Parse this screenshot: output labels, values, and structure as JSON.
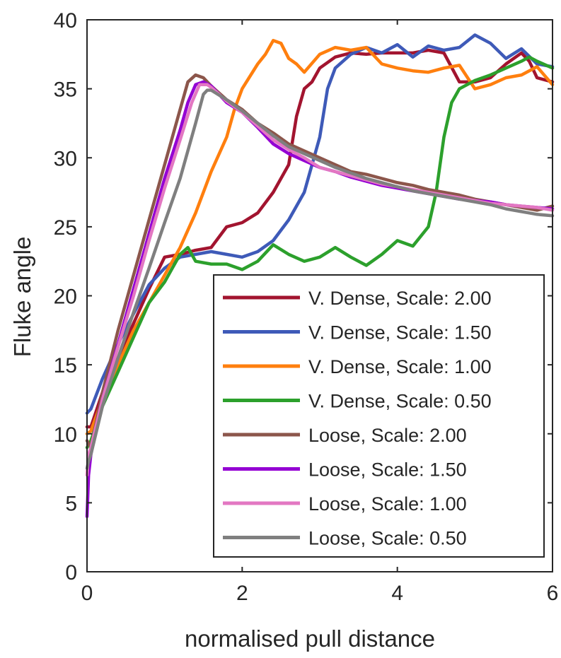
{
  "chart_data": {
    "type": "line",
    "title": "",
    "xlabel": "normalised pull distance",
    "ylabel": "Fluke angle",
    "xlim": [
      0,
      6
    ],
    "ylim": [
      0,
      40
    ],
    "xticks": [
      0,
      2,
      4,
      6
    ],
    "yticks": [
      0,
      5,
      10,
      15,
      20,
      25,
      30,
      35,
      40
    ],
    "grid": false,
    "legend_position": "bottom-right",
    "series": [
      {
        "name": "V. Dense, Scale: 2.00",
        "color": "#A2142F",
        "x": [
          0,
          0.05,
          0.2,
          0.4,
          0.6,
          0.8,
          1.0,
          1.2,
          1.4,
          1.6,
          1.8,
          2.0,
          2.2,
          2.4,
          2.6,
          2.7,
          2.8,
          2.9,
          3.0,
          3.2,
          3.4,
          3.6,
          3.8,
          4.0,
          4.2,
          4.4,
          4.6,
          4.8,
          5.0,
          5.2,
          5.4,
          5.6,
          5.7,
          5.8,
          6.0
        ],
        "y": [
          10.5,
          10.5,
          13.0,
          15.5,
          18.0,
          20.5,
          22.8,
          23.0,
          23.3,
          23.5,
          25.0,
          25.3,
          26.0,
          27.5,
          29.5,
          33.0,
          35.0,
          35.5,
          36.5,
          37.3,
          37.6,
          37.5,
          37.6,
          37.6,
          37.6,
          37.8,
          37.6,
          35.5,
          35.5,
          35.8,
          36.8,
          37.6,
          37.0,
          35.8,
          35.5
        ]
      },
      {
        "name": "V. Dense, Scale: 1.50",
        "color": "#3E5AB8",
        "x": [
          0,
          0.05,
          0.2,
          0.4,
          0.6,
          0.8,
          1.0,
          1.2,
          1.4,
          1.6,
          1.8,
          2.0,
          2.2,
          2.4,
          2.6,
          2.8,
          3.0,
          3.1,
          3.2,
          3.4,
          3.6,
          3.8,
          4.0,
          4.2,
          4.4,
          4.6,
          4.8,
          5.0,
          5.2,
          5.4,
          5.6,
          5.8,
          6.0
        ],
        "y": [
          11.5,
          11.8,
          14.0,
          16.5,
          18.7,
          20.8,
          22.0,
          22.8,
          23.0,
          23.2,
          23.0,
          22.8,
          23.2,
          24.0,
          25.5,
          27.5,
          31.5,
          35.0,
          36.5,
          37.5,
          38.0,
          37.6,
          38.2,
          37.3,
          38.1,
          37.8,
          38.0,
          38.9,
          38.3,
          37.2,
          37.9,
          36.8,
          36.6
        ]
      },
      {
        "name": "V. Dense, Scale: 1.00",
        "color": "#FF7F0E",
        "x": [
          0,
          0.05,
          0.2,
          0.4,
          0.6,
          0.8,
          1.0,
          1.2,
          1.4,
          1.6,
          1.8,
          1.9,
          2.0,
          2.2,
          2.3,
          2.4,
          2.5,
          2.6,
          2.7,
          2.8,
          3.0,
          3.2,
          3.4,
          3.6,
          3.8,
          4.0,
          4.2,
          4.4,
          4.6,
          4.8,
          5.0,
          5.2,
          5.4,
          5.6,
          5.8,
          6.0
        ],
        "y": [
          10.0,
          10.2,
          12.5,
          15.0,
          17.5,
          19.5,
          21.5,
          23.5,
          26.0,
          29.0,
          31.5,
          33.5,
          35.0,
          36.8,
          37.5,
          38.5,
          38.3,
          37.2,
          36.8,
          36.2,
          37.5,
          38.0,
          37.8,
          38.0,
          36.8,
          36.5,
          36.3,
          36.2,
          36.5,
          36.7,
          35.0,
          35.3,
          35.8,
          36.0,
          36.6,
          35.3
        ]
      },
      {
        "name": "V. Dense, Scale: 0.50",
        "color": "#2CA02C",
        "x": [
          0,
          0.05,
          0.2,
          0.4,
          0.6,
          0.8,
          1.0,
          1.1,
          1.2,
          1.3,
          1.4,
          1.6,
          1.8,
          2.0,
          2.2,
          2.4,
          2.6,
          2.8,
          3.0,
          3.2,
          3.4,
          3.6,
          3.8,
          4.0,
          4.2,
          4.4,
          4.5,
          4.6,
          4.7,
          4.8,
          5.0,
          5.2,
          5.4,
          5.6,
          5.7,
          5.8,
          6.0
        ],
        "y": [
          9.0,
          9.5,
          12.0,
          14.5,
          17.0,
          19.5,
          21.0,
          22.0,
          23.0,
          23.5,
          22.5,
          22.3,
          22.3,
          21.9,
          22.5,
          23.7,
          23.0,
          22.5,
          22.8,
          23.5,
          22.8,
          22.2,
          23.0,
          24.0,
          23.6,
          25.0,
          27.5,
          31.5,
          34.0,
          35.0,
          35.6,
          36.0,
          36.5,
          37.0,
          37.3,
          37.0,
          36.5
        ]
      },
      {
        "name": "Loose, Scale: 2.00",
        "color": "#8C564B",
        "x": [
          0,
          0.05,
          0.2,
          0.4,
          0.6,
          0.8,
          1.0,
          1.2,
          1.3,
          1.4,
          1.5,
          1.6,
          1.8,
          2.0,
          2.2,
          2.4,
          2.6,
          2.8,
          3.0,
          3.2,
          3.4,
          3.6,
          3.8,
          4.0,
          4.2,
          4.4,
          4.6,
          4.8,
          5.0,
          5.2,
          5.4,
          5.6,
          5.8,
          6.0
        ],
        "y": [
          9.5,
          9.0,
          13.0,
          17.5,
          21.5,
          25.5,
          29.5,
          33.5,
          35.5,
          36.0,
          35.8,
          35.2,
          34.2,
          33.5,
          32.5,
          31.8,
          31.0,
          30.5,
          30.0,
          29.5,
          29.0,
          28.8,
          28.5,
          28.2,
          28.0,
          27.7,
          27.5,
          27.3,
          27.0,
          26.8,
          26.6,
          26.4,
          26.2,
          26.5
        ]
      },
      {
        "name": "Loose, Scale: 1.50",
        "color": "#9400D3",
        "x": [
          0,
          0.02,
          0.05,
          0.2,
          0.4,
          0.6,
          0.8,
          1.0,
          1.2,
          1.3,
          1.4,
          1.5,
          1.6,
          1.8,
          2.0,
          2.2,
          2.4,
          2.6,
          2.8,
          3.0,
          3.2,
          3.4,
          3.6,
          3.8,
          4.0,
          4.2,
          4.4,
          4.6,
          4.8,
          5.0,
          5.2,
          5.4,
          5.6,
          5.8,
          6.0
        ],
        "y": [
          4.0,
          7.0,
          8.5,
          12.5,
          16.5,
          20.5,
          24.5,
          28.5,
          32.0,
          34.0,
          35.3,
          35.5,
          35.2,
          34.0,
          33.3,
          32.2,
          31.0,
          30.3,
          29.8,
          29.3,
          29.0,
          28.6,
          28.3,
          28.0,
          27.8,
          27.6,
          27.4,
          27.2,
          27.0,
          26.9,
          26.8,
          26.6,
          26.5,
          26.4,
          26.3
        ]
      },
      {
        "name": "Loose, Scale: 1.00",
        "color": "#E377C2",
        "x": [
          0,
          0.02,
          0.05,
          0.2,
          0.4,
          0.6,
          0.8,
          1.0,
          1.2,
          1.35,
          1.45,
          1.55,
          1.6,
          1.8,
          2.0,
          2.2,
          2.4,
          2.6,
          2.8,
          3.0,
          3.2,
          3.4,
          3.6,
          3.8,
          4.0,
          4.2,
          4.4,
          4.6,
          4.8,
          5.0,
          5.2,
          5.4,
          5.6,
          5.8,
          6.0
        ],
        "y": [
          7.0,
          8.5,
          9.0,
          12.5,
          16.3,
          20.0,
          24.0,
          27.8,
          31.3,
          34.0,
          35.3,
          35.3,
          35.1,
          34.1,
          33.3,
          32.3,
          31.3,
          30.6,
          30.0,
          29.3,
          29.0,
          28.7,
          28.4,
          28.1,
          27.9,
          27.7,
          27.5,
          27.3,
          27.1,
          26.9,
          26.7,
          26.6,
          26.5,
          26.4,
          26.2
        ]
      },
      {
        "name": "Loose, Scale: 0.50",
        "color": "#7F7F7F",
        "x": [
          0,
          0.02,
          0.05,
          0.2,
          0.4,
          0.6,
          0.8,
          1.0,
          1.2,
          1.4,
          1.5,
          1.55,
          1.6,
          1.8,
          2.0,
          2.2,
          2.4,
          2.6,
          2.8,
          3.0,
          3.2,
          3.4,
          3.6,
          3.8,
          4.0,
          4.2,
          4.4,
          4.6,
          4.8,
          5.0,
          5.2,
          5.4,
          5.6,
          5.7,
          5.8,
          6.0
        ],
        "y": [
          7.5,
          8.0,
          8.5,
          12.0,
          15.5,
          18.8,
          22.0,
          25.3,
          28.5,
          32.5,
          34.6,
          34.9,
          34.9,
          34.2,
          33.4,
          32.5,
          31.6,
          30.8,
          30.3,
          29.8,
          29.3,
          28.9,
          28.5,
          28.2,
          27.9,
          27.6,
          27.4,
          27.2,
          27.0,
          26.8,
          26.6,
          26.3,
          26.1,
          26.0,
          25.9,
          25.8
        ]
      }
    ]
  }
}
